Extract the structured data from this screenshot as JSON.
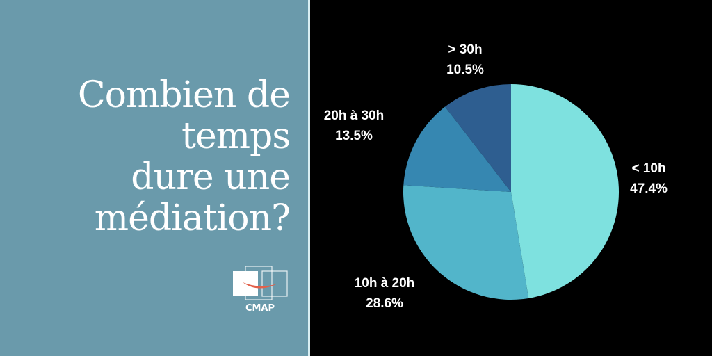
{
  "headline": {
    "lines": [
      "Combien de",
      "temps",
      "dure une",
      "médiation?"
    ]
  },
  "logo": {
    "name": "CMAP",
    "mark_color": "#e2604a"
  },
  "colors": {
    "left_panel": "#6a9aab",
    "right_panel": "#000000"
  },
  "chart_data": {
    "type": "pie",
    "start_angle_deg": 0,
    "direction": "clockwise",
    "slices": [
      {
        "label": "< 10h",
        "value": 47.4,
        "value_label": "47.4%",
        "color": "#7ee1df"
      },
      {
        "label": "10h à 20h",
        "value": 28.6,
        "value_label": "28.6%",
        "color": "#52b5ca"
      },
      {
        "label": "20h à 30h",
        "value": 13.5,
        "value_label": "13.5%",
        "color": "#3687b1"
      },
      {
        "label": "> 30h",
        "value": 10.5,
        "value_label": "10.5%",
        "color": "#2e5e90"
      }
    ]
  }
}
